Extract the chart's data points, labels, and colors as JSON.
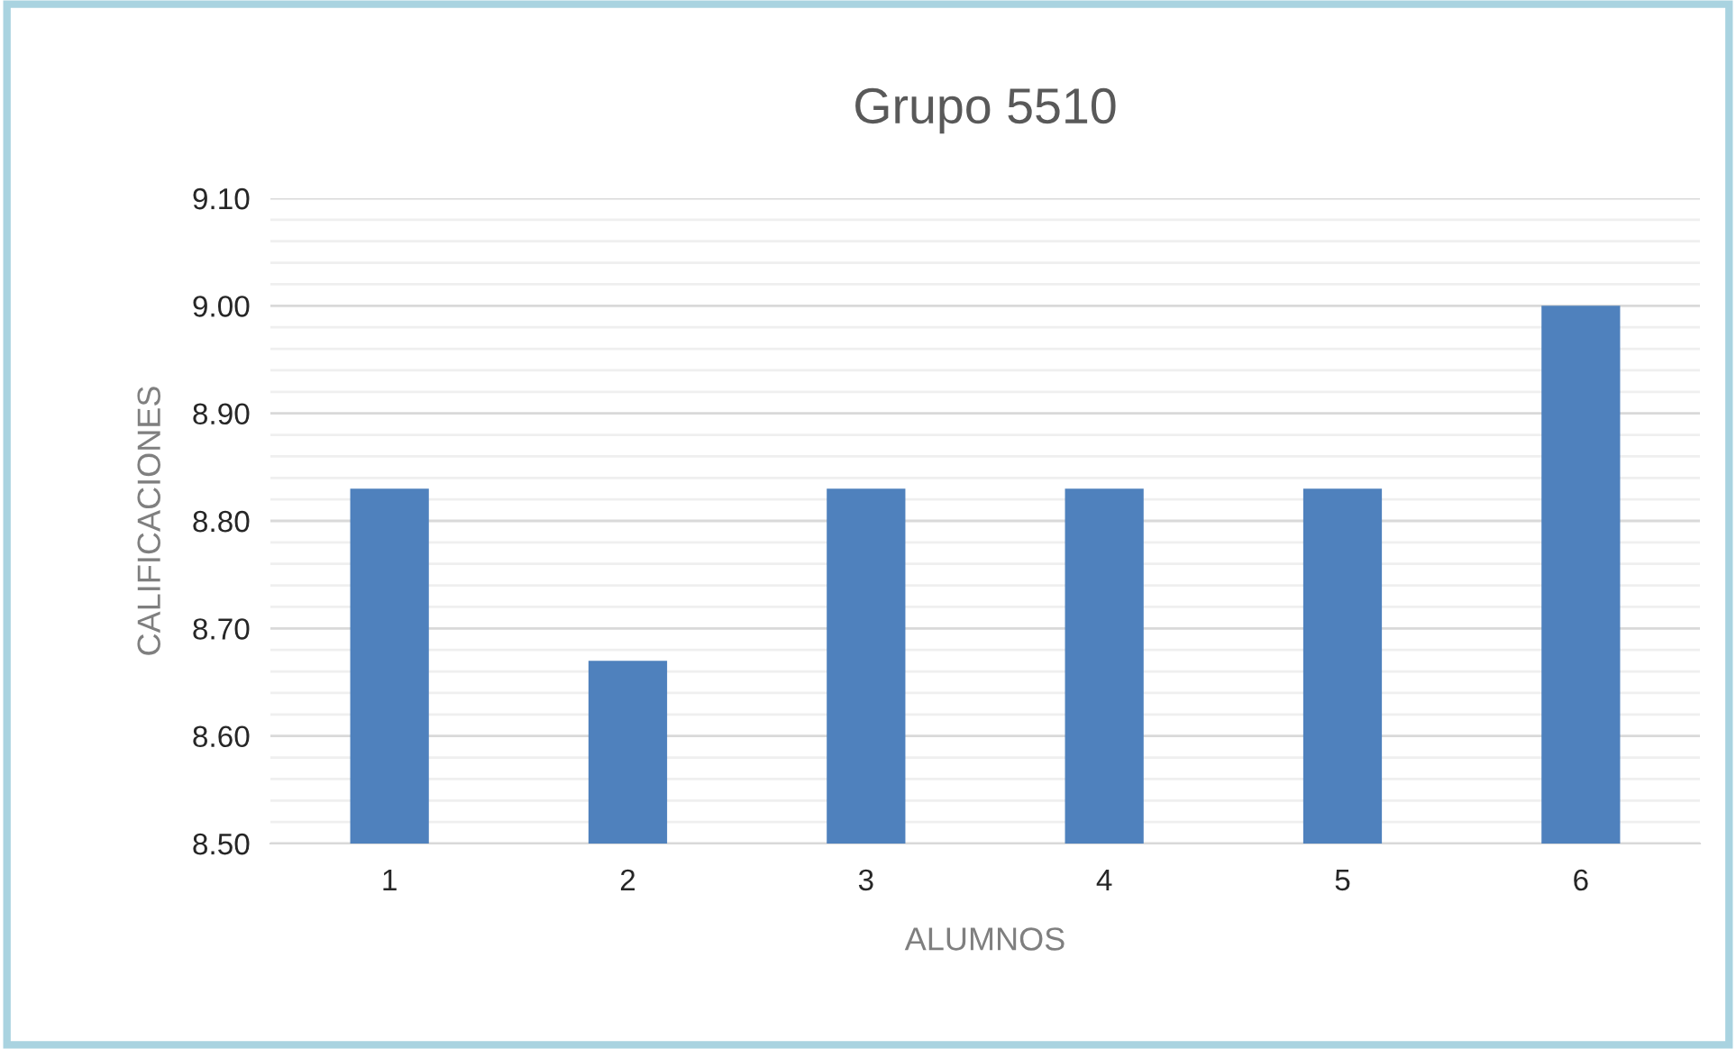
{
  "chart_data": {
    "type": "bar",
    "title": "Grupo 5510",
    "xlabel": "ALUMNOS",
    "ylabel": "CALIFICACIONES",
    "categories": [
      "1",
      "2",
      "3",
      "4",
      "5",
      "6"
    ],
    "values": [
      8.83,
      8.67,
      8.83,
      8.83,
      8.83,
      9.0
    ],
    "color": "#4f81bd",
    "ylim": [
      8.5,
      9.1
    ],
    "yticks": [
      {
        "value": 8.5,
        "label": "8.50"
      },
      {
        "value": 8.52,
        "label": null
      },
      {
        "value": 8.54,
        "label": null
      },
      {
        "value": 8.56,
        "label": null
      },
      {
        "value": 8.58,
        "label": null
      },
      {
        "value": 8.6,
        "label": "8.60"
      },
      {
        "value": 8.62,
        "label": null
      },
      {
        "value": 8.64,
        "label": null
      },
      {
        "value": 8.66,
        "label": null
      },
      {
        "value": 8.68,
        "label": null
      },
      {
        "value": 8.7,
        "label": "8.70"
      },
      {
        "value": 8.72,
        "label": null
      },
      {
        "value": 8.74,
        "label": null
      },
      {
        "value": 8.76,
        "label": null
      },
      {
        "value": 8.78,
        "label": null
      },
      {
        "value": 8.8,
        "label": "8.80"
      },
      {
        "value": 8.82,
        "label": null
      },
      {
        "value": 8.84,
        "label": null
      },
      {
        "value": 8.86,
        "label": null
      },
      {
        "value": 8.88,
        "label": null
      },
      {
        "value": 8.9,
        "label": "8.90"
      },
      {
        "value": 8.92,
        "label": null
      },
      {
        "value": 8.94,
        "label": null
      },
      {
        "value": 8.96,
        "label": null
      },
      {
        "value": 8.98,
        "label": null
      },
      {
        "value": 9.0,
        "label": "9.00"
      },
      {
        "value": 9.02,
        "label": null
      },
      {
        "value": 9.04,
        "label": null
      },
      {
        "value": 9.06,
        "label": null
      },
      {
        "value": 9.08,
        "label": null
      },
      {
        "value": 9.1,
        "label": "9.10"
      }
    ],
    "grid": "y"
  }
}
